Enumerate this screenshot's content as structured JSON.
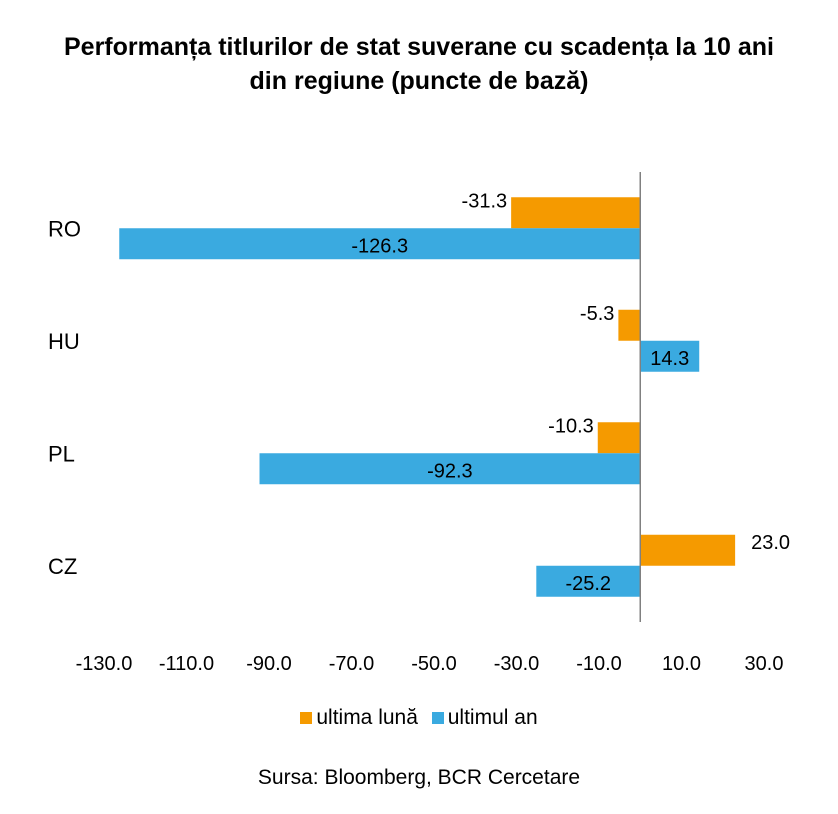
{
  "title": {
    "line1": "Performanța titlurilor de stat suverane cu scadența la 10 ani",
    "line2": "din regiune (puncte de bază)"
  },
  "chart_data": {
    "type": "bar",
    "orientation": "horizontal",
    "categories": [
      "RO",
      "HU",
      "PL",
      "CZ"
    ],
    "series": [
      {
        "name": "ultima lună",
        "values": [
          -31.3,
          -5.3,
          -10.3,
          23.0
        ],
        "labels": [
          "-31.3",
          "-5.3",
          "-10.3",
          "23.0"
        ]
      },
      {
        "name": "ultimul an",
        "values": [
          -126.3,
          14.3,
          -92.3,
          -25.2
        ],
        "labels": [
          "-126.3",
          "14.3",
          "-92.3",
          "-25.2"
        ]
      }
    ],
    "xlim": [
      -130,
      30
    ],
    "xticks": [
      -130,
      -110,
      -90,
      -70,
      -50,
      -30,
      -10,
      10,
      30
    ],
    "xtick_labels": [
      "-130.0",
      "-110.0",
      "-90.0",
      "-70.0",
      "-50.0",
      "-30.0",
      "-10.0",
      "10.0",
      "30.0"
    ],
    "colors": {
      "ultima lună": "#F59A00",
      "ultimul an": "#3AAAE0"
    },
    "grid": false,
    "legend_position": "bottom"
  },
  "legend": {
    "items": [
      {
        "label": "ultima lună",
        "color": "#F59A00"
      },
      {
        "label": "ultimul an",
        "color": "#3AAAE0"
      }
    ]
  },
  "source": "Sursa: Bloomberg, BCR Cercetare"
}
